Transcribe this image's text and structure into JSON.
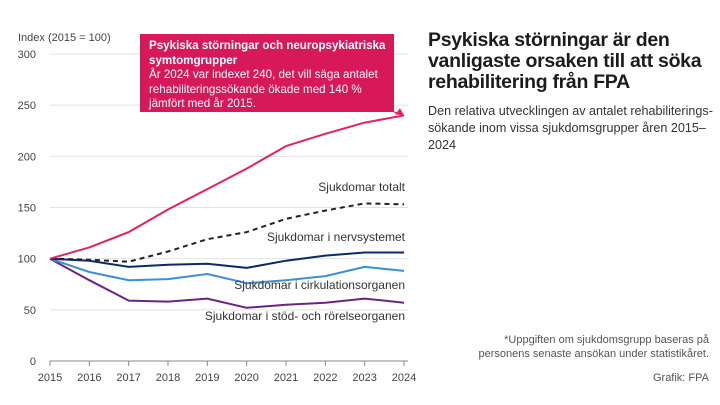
{
  "title": "Psykiska störningar är den vanligaste orsaken till att söka rehabilitering från FPA",
  "subtitle": "Den relativa utvecklingen av antalet rehabiliterings-sökande inom vissa sjukdomsgrupper åren 2015–2024",
  "footnote": "*Uppgiften om sjukdomsgrupp baseras på personens senaste ansökan under statistikåret.",
  "credit": "Grafik: FPA",
  "callout": {
    "title": "Psykiska störningar och neuropsykiatriska symtomgrupper",
    "text": "År 2024 var indexet 240, det vill säga antalet rehabiliteringssökande ökade med 140 % jämfört med år 2015."
  },
  "chart_data": {
    "type": "line",
    "ylabel": "Index (2015 = 100)",
    "ylim": [
      0,
      300
    ],
    "yticks": [
      0,
      50,
      100,
      150,
      200,
      250,
      300
    ],
    "x": [
      "2015",
      "2016",
      "2017",
      "2018",
      "2019",
      "2020",
      "2021",
      "2022",
      "2023",
      "2024"
    ],
    "series": [
      {
        "name": "Psykiska störningar och neuropsykiatriska symtomgrupper",
        "label": "",
        "color": "#e0245e",
        "dashed": false,
        "values": [
          100,
          111,
          126,
          148,
          168,
          188,
          210,
          222,
          233,
          240
        ]
      },
      {
        "name": "Sjukdomar totalt",
        "label": "Sjukdomar totalt",
        "color": "#222222",
        "dashed": true,
        "values": [
          100,
          99,
          97,
          107,
          119,
          126,
          139,
          147,
          154,
          153
        ]
      },
      {
        "name": "Sjukdomar i nervsystemet",
        "label": "Sjukdomar i nervsystemet",
        "color": "#0a2a6b",
        "dashed": false,
        "values": [
          100,
          98,
          92,
          94,
          95,
          91,
          98,
          103,
          106,
          106
        ]
      },
      {
        "name": "Sjukdomar i cirkulationsorganen",
        "label": "Sjukdomar i cirkulationsorganen",
        "color": "#3d8fd6",
        "dashed": false,
        "values": [
          100,
          87,
          79,
          80,
          85,
          76,
          79,
          83,
          92,
          88
        ]
      },
      {
        "name": "Sjukdomar i stöd- och rörelseorganen",
        "label": "Sjukdomar i stöd- och rörelseorganen",
        "color": "#6b2480",
        "dashed": false,
        "values": [
          100,
          79,
          59,
          58,
          61,
          52,
          55,
          57,
          61,
          57
        ]
      }
    ]
  }
}
